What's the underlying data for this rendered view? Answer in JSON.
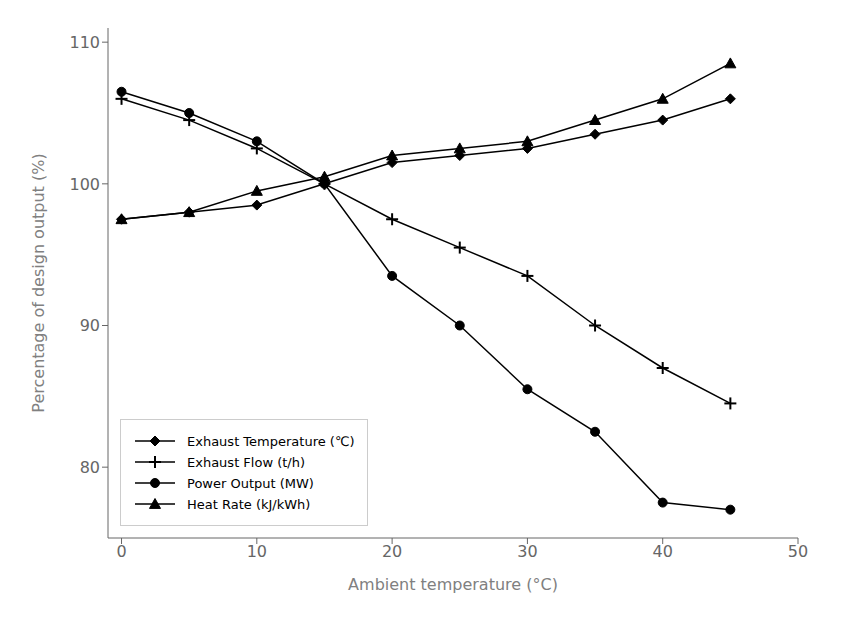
{
  "chart_data": {
    "type": "line",
    "x": [
      0,
      5,
      10,
      15,
      20,
      25,
      30,
      35,
      40,
      45
    ],
    "series": [
      {
        "name": "Exhaust Temperature (℃)",
        "color": "black",
        "marker": "diamond",
        "values": [
          97.5,
          98.0,
          98.5,
          100.0,
          101.5,
          102.0,
          102.5,
          103.5,
          104.5,
          106.0
        ]
      },
      {
        "name": "Exhaust Flow (t/h)",
        "color": "black",
        "marker": "plus",
        "values": [
          106.0,
          104.5,
          102.5,
          100.0,
          97.5,
          95.5,
          93.5,
          90.0,
          87.0,
          84.5
        ]
      },
      {
        "name": "Power Output (MW)",
        "color": "black",
        "marker": "circle",
        "values": [
          106.5,
          105.0,
          103.0,
          100.0,
          93.5,
          90.0,
          85.5,
          82.5,
          77.5,
          77.0
        ]
      },
      {
        "name": "Heat Rate (kJ/kWh)",
        "color": "black",
        "marker": "triangle",
        "values": [
          97.5,
          98.0,
          99.5,
          100.5,
          102.0,
          102.5,
          103.0,
          104.5,
          106.0,
          108.5
        ]
      }
    ],
    "xlabel": "Ambient temperature (°C)",
    "ylabel": "Percentage of design output (%)",
    "xlim": [
      -1,
      50
    ],
    "ylim": [
      75,
      111
    ],
    "xticks": [
      0,
      10,
      20,
      30,
      40,
      50
    ],
    "yticks": [
      80,
      90,
      100,
      110
    ],
    "grid": false,
    "legend": "lower left"
  }
}
